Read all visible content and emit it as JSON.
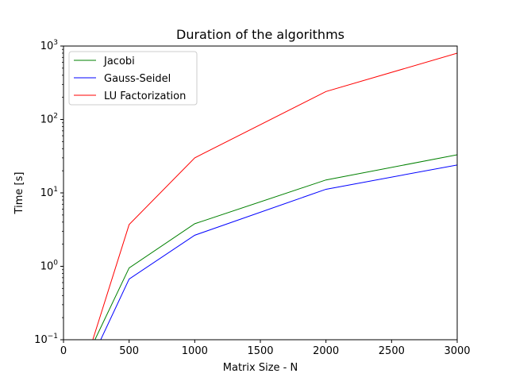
{
  "chart_data": {
    "type": "line",
    "title": "Duration of the algorithms",
    "xlabel": "Matrix Size - N",
    "ylabel": "Time [s]",
    "xlim": [
      0,
      3000
    ],
    "ylim": [
      0.1,
      1000
    ],
    "yscale": "log",
    "grid": false,
    "legend_position": "top-left",
    "x_ticks": [
      "0",
      "500",
      "1000",
      "1500",
      "2000",
      "2500",
      "3000"
    ],
    "y_ticks": [
      {
        "base": "10",
        "exp": "−1"
      },
      {
        "base": "10",
        "exp": "0"
      },
      {
        "base": "10",
        "exp": "1"
      },
      {
        "base": "10",
        "exp": "2"
      },
      {
        "base": "10",
        "exp": "3"
      }
    ],
    "series": [
      {
        "name": "Jacobi",
        "color": "#008000",
        "x": [
          100,
          500,
          1000,
          2000,
          3000
        ],
        "y": [
          0.03,
          0.95,
          3.8,
          15,
          33
        ]
      },
      {
        "name": "Gauss-Seidel",
        "color": "#0000ff",
        "x": [
          100,
          500,
          1000,
          2000,
          3000
        ],
        "y": [
          0.02,
          0.67,
          2.65,
          11.2,
          24
        ]
      },
      {
        "name": "LU Factorization",
        "color": "#ff0000",
        "x": [
          100,
          500,
          1000,
          2000,
          3000
        ],
        "y": [
          0.02,
          3.7,
          30,
          240,
          800
        ]
      }
    ]
  }
}
